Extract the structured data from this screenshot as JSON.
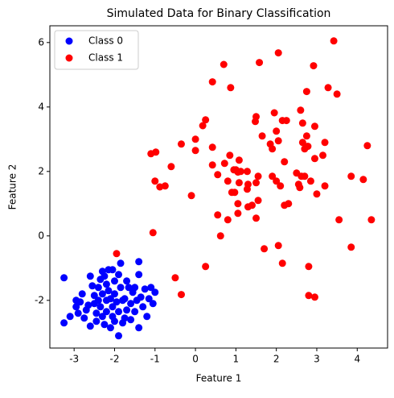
{
  "chart_data": {
    "type": "scatter",
    "title": "Simulated Data for Binary Classification",
    "x_label": "Feature 1",
    "y_label": "Feature 2",
    "xlim": [
      -3.6,
      4.75
    ],
    "ylim": [
      -3.48,
      6.52
    ],
    "xticks": [
      -3,
      -2,
      -1,
      0,
      1,
      2,
      3,
      4
    ],
    "yticks": [
      -2,
      0,
      2,
      4,
      6
    ],
    "legend": "upper left",
    "series": [
      {
        "name": "Class 0",
        "color": "#0000ff",
        "x": [
          -3.25,
          -3.25,
          -3.1,
          -2.95,
          -2.95,
          -2.9,
          -2.8,
          -2.85,
          -2.7,
          -2.6,
          -2.55,
          -2.65,
          -2.5,
          -2.5,
          -2.45,
          -2.4,
          -2.4,
          -2.35,
          -2.35,
          -2.3,
          -2.3,
          -2.3,
          -2.25,
          -2.2,
          -2.2,
          -2.2,
          -2.15,
          -2.15,
          -2.1,
          -2.1,
          -2.05,
          -2.05,
          -2.05,
          -2.0,
          -2.0,
          -2.0,
          -1.95,
          -1.9,
          -1.9,
          -1.9,
          -1.85,
          -1.85,
          -1.8,
          -1.8,
          -1.75,
          -1.7,
          -1.7,
          -1.65,
          -1.6,
          -1.6,
          -1.55,
          -1.5,
          -1.5,
          -1.45,
          -1.4,
          -1.4,
          -1.4,
          -1.35,
          -1.3,
          -1.25,
          -1.2,
          -1.15,
          -1.1,
          -1.05,
          -1.0,
          -2.6,
          -2.75,
          -2.45,
          -1.75,
          -2.25
        ],
        "values": [
          -1.3,
          -2.7,
          -2.5,
          -2.2,
          -2.0,
          -2.4,
          -1.8,
          -2.05,
          -2.3,
          -1.25,
          -1.55,
          -2.15,
          -1.85,
          -2.1,
          -2.4,
          -1.6,
          -2.0,
          -1.35,
          -2.2,
          -1.1,
          -1.8,
          -2.5,
          -2.75,
          -1.5,
          -2.0,
          -2.35,
          -1.05,
          -1.7,
          -2.85,
          -1.95,
          -1.05,
          -2.2,
          -2.5,
          -1.4,
          -1.8,
          -2.65,
          -2.05,
          -1.2,
          -2.35,
          -3.1,
          -1.6,
          -0.85,
          -2.0,
          -2.7,
          -1.95,
          -2.3,
          -1.4,
          -1.6,
          -2.1,
          -2.6,
          -1.75,
          -2.35,
          -1.6,
          -2.0,
          -0.8,
          -1.2,
          -2.85,
          -1.9,
          -2.2,
          -1.65,
          -2.5,
          -1.95,
          -1.6,
          -2.1,
          -1.75,
          -2.8,
          -2.55,
          -2.65,
          -2.55,
          -1.25
        ]
      },
      {
        "name": "Class 1",
        "color": "#ff0000",
        "x": [
          3.42,
          1.58,
          2.05,
          0.7,
          0.42,
          2.92,
          0.87,
          2.75,
          3.28,
          3.5,
          1.95,
          0.18,
          0.25,
          1.5,
          1.48,
          2.15,
          2.25,
          2.6,
          2.65,
          2.75,
          2.95,
          3.2,
          2.65,
          2.0,
          2.05,
          1.9,
          2.2,
          1.65,
          1.85,
          2.7,
          2.78,
          2.95,
          3.15,
          4.25,
          0.42,
          -0.35,
          0.0,
          0.0,
          -0.98,
          -1.1,
          -0.6,
          0.42,
          0.55,
          0.72,
          0.85,
          1.08,
          1.0,
          1.12,
          1.05,
          0.95,
          1.28,
          0.8,
          1.08,
          1.3,
          1.55,
          1.5,
          1.9,
          2.0,
          2.5,
          2.62,
          2.55,
          2.58,
          2.7,
          2.85,
          3.2,
          2.1,
          2.3,
          2.2,
          1.55,
          1.4,
          1.28,
          0.9,
          0.97,
          1.05,
          1.3,
          1.05,
          1.5,
          0.8,
          0.55,
          0.62,
          3.0,
          3.85,
          4.15,
          4.35,
          3.55,
          3.85,
          -1.0,
          -0.88,
          -0.75,
          -0.1,
          -1.05,
          2.05,
          1.7,
          2.15,
          2.8,
          0.25,
          -0.5,
          -0.35,
          2.8,
          2.95,
          -1.95
        ],
        "values": [
          6.05,
          5.38,
          5.68,
          5.32,
          4.78,
          5.28,
          4.6,
          4.48,
          4.6,
          4.4,
          3.82,
          3.42,
          3.6,
          3.7,
          3.55,
          3.58,
          3.58,
          3.9,
          3.5,
          3.1,
          3.4,
          2.9,
          2.9,
          3.25,
          2.95,
          2.7,
          2.3,
          3.1,
          2.85,
          2.7,
          2.78,
          2.4,
          2.5,
          2.8,
          2.75,
          2.85,
          3.0,
          2.65,
          2.6,
          2.55,
          2.15,
          2.2,
          1.9,
          2.25,
          2.5,
          2.35,
          2.05,
          2.0,
          1.98,
          2.05,
          2.0,
          1.7,
          1.65,
          1.6,
          1.85,
          1.65,
          1.85,
          1.7,
          1.95,
          1.85,
          1.6,
          1.5,
          1.85,
          1.7,
          1.55,
          1.55,
          1.0,
          0.95,
          1.1,
          0.95,
          1.45,
          1.35,
          1.35,
          1.0,
          0.9,
          0.7,
          0.55,
          0.5,
          0.65,
          0.0,
          1.3,
          1.85,
          1.75,
          0.5,
          0.5,
          -0.35,
          1.7,
          1.52,
          1.55,
          1.25,
          0.1,
          -0.3,
          -0.4,
          -0.85,
          -0.95,
          -0.95,
          -1.3,
          -1.82,
          -1.85,
          -1.9,
          -0.55
        ]
      }
    ]
  }
}
